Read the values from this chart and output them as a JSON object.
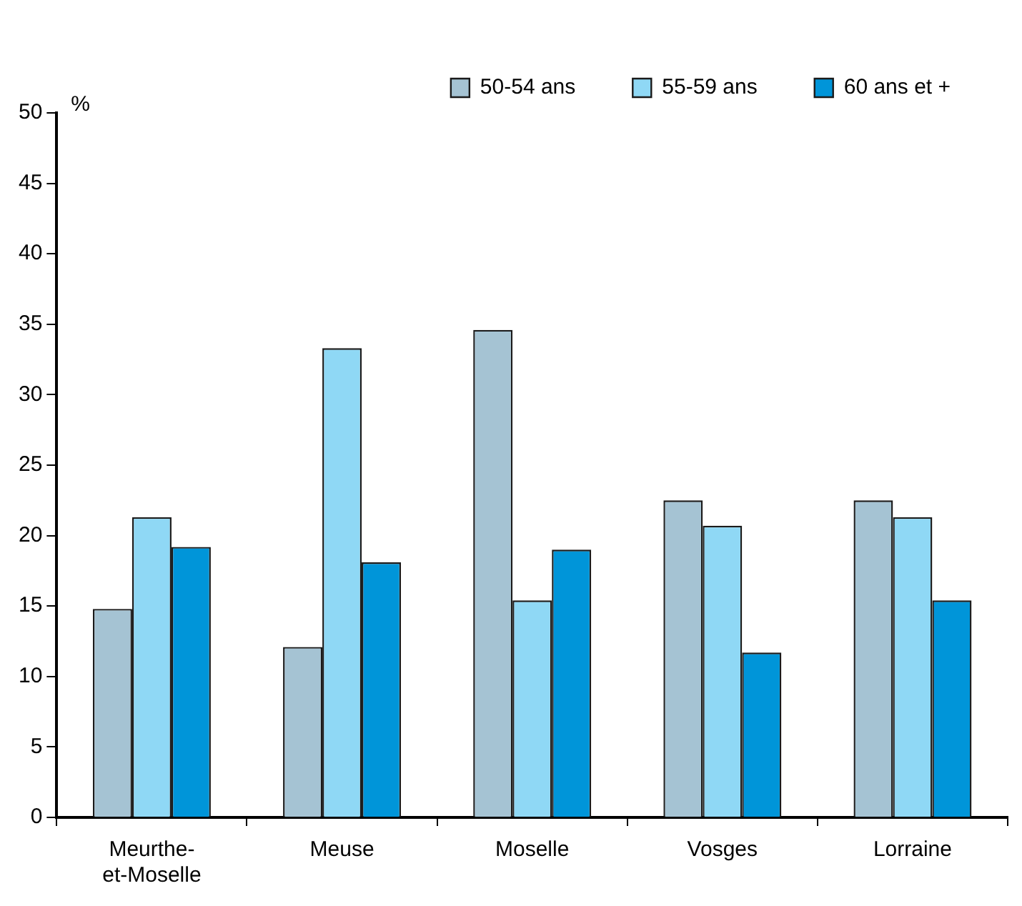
{
  "chart_data": {
    "type": "bar",
    "ylabel": "%",
    "categories": [
      "Meurthe-et-Moselle",
      "Meuse",
      "Moselle",
      "Vosges",
      "Lorraine"
    ],
    "series": [
      {
        "name": "50-54 ans",
        "color": "#a5c3d3",
        "values": [
          14.8,
          12.1,
          34.6,
          22.5,
          22.5
        ]
      },
      {
        "name": "55-59 ans",
        "color": "#8fd8f5",
        "values": [
          21.3,
          33.3,
          15.4,
          20.7,
          21.3
        ]
      },
      {
        "name": "60 ans et +",
        "color": "#0095d9",
        "values": [
          19.2,
          18.1,
          19.0,
          11.7,
          15.4
        ]
      }
    ],
    "ylim": [
      0,
      50
    ],
    "yticks": [
      0,
      5,
      10,
      15,
      20,
      25,
      30,
      35,
      40,
      45,
      50
    ],
    "grid": false,
    "legend": "top right"
  }
}
